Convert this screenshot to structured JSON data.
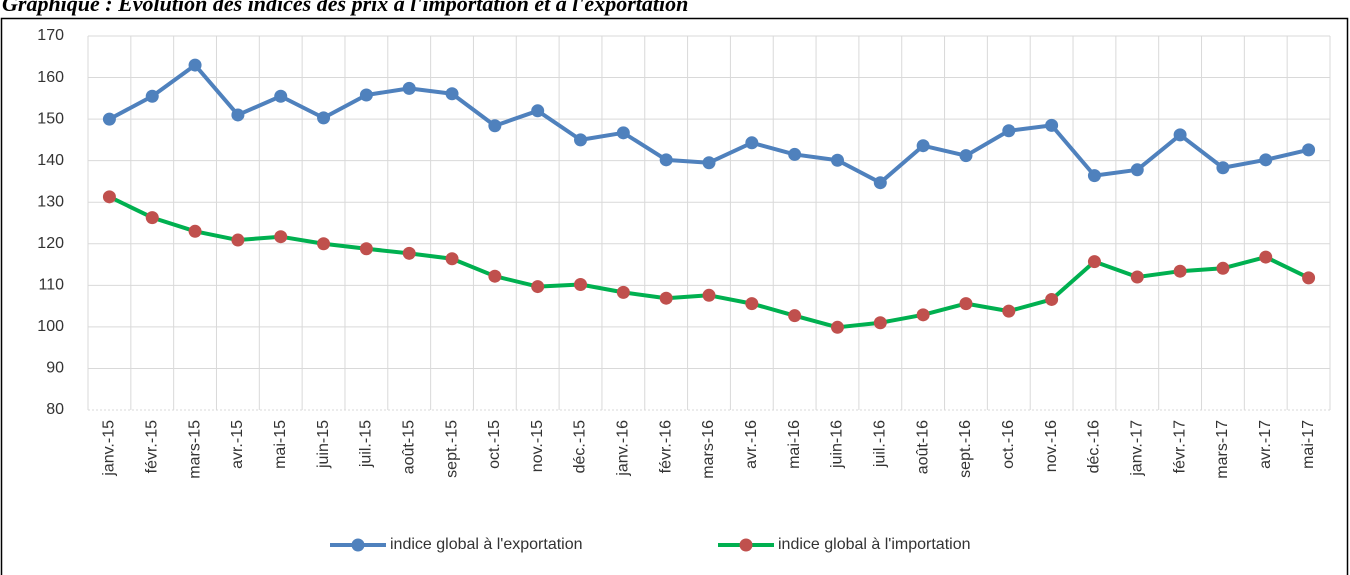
{
  "chart_data": {
    "type": "line",
    "title": "Graphique : Evolution des indices des prix à l'importation et à l'exportation",
    "categories": [
      "janv.-15",
      "févr.-15",
      "mars-15",
      "avr.-15",
      "mai-15",
      "juin-15",
      "juil.-15",
      "août-15",
      "sept.-15",
      "oct.-15",
      "nov.-15",
      "déc.-15",
      "janv.-16",
      "févr.-16",
      "mars-16",
      "avr.-16",
      "mai-16",
      "juin-16",
      "juil.-16",
      "août-16",
      "sept.-16",
      "oct.-16",
      "nov.-16",
      "déc.-16",
      "janv.-17",
      "févr.-17",
      "mars-17",
      "avr.-17",
      "mai-17"
    ],
    "series": [
      {
        "name": "indice global à l'exportation",
        "color": "#4f81bd",
        "marker_color": "#4f81bd",
        "values": [
          150,
          155.5,
          163,
          151,
          155.5,
          150.3,
          155.8,
          157.4,
          156.1,
          148.4,
          152,
          145,
          146.7,
          140.2,
          139.5,
          144.3,
          141.5,
          140.1,
          134.7,
          143.6,
          141.2,
          147.2,
          148.5,
          136.4,
          137.8,
          146.2,
          138.3,
          140.2,
          142.6
        ]
      },
      {
        "name": "indice global à l'importation",
        "color": "#00b050",
        "marker_color": "#c0504d",
        "values": [
          131.3,
          126.3,
          123,
          120.9,
          121.7,
          120,
          118.8,
          117.7,
          116.4,
          112.2,
          109.7,
          110.2,
          108.3,
          106.9,
          107.6,
          105.6,
          102.7,
          99.9,
          101,
          102.9,
          105.6,
          103.8,
          106.6,
          115.7,
          112,
          113.4,
          114.1,
          116.8,
          111.8
        ]
      }
    ],
    "ylim": [
      80,
      170
    ],
    "yticks": [
      80,
      90,
      100,
      110,
      120,
      130,
      140,
      150,
      160,
      170
    ],
    "grid": true,
    "legend": "bottom"
  }
}
